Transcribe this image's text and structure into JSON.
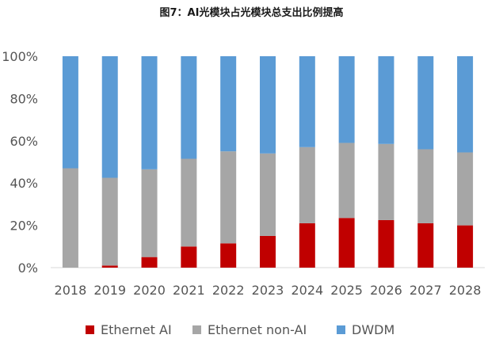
{
  "chart_data": {
    "type": "bar",
    "stacked": true,
    "normalized": true,
    "title": "图7：AI光模块占光模块总支出比例提高",
    "xlabel": "",
    "ylabel": "",
    "ylim": [
      0,
      100
    ],
    "y_ticks": [
      "0%",
      "20%",
      "40%",
      "60%",
      "80%",
      "100%"
    ],
    "categories": [
      "2018",
      "2019",
      "2020",
      "2021",
      "2022",
      "2023",
      "2024",
      "2025",
      "2026",
      "2027",
      "2028"
    ],
    "series": [
      {
        "name": "Ethernet AI",
        "color": "#c00000",
        "values": [
          0,
          1,
          5,
          10,
          11.5,
          15,
          21,
          23.5,
          22.5,
          21,
          20
        ]
      },
      {
        "name": "Ethernet non-AI",
        "color": "#a6a6a6",
        "values": [
          47,
          41.5,
          41.5,
          41.5,
          43.5,
          39,
          36,
          35.5,
          36,
          35,
          34.5
        ]
      },
      {
        "name": "DWDM",
        "color": "#5b9bd5",
        "values": [
          53,
          57.5,
          53.5,
          48.5,
          45,
          46,
          43,
          41,
          41.5,
          44,
          45.5
        ]
      }
    ],
    "grid": false,
    "legend_position": "bottom"
  }
}
